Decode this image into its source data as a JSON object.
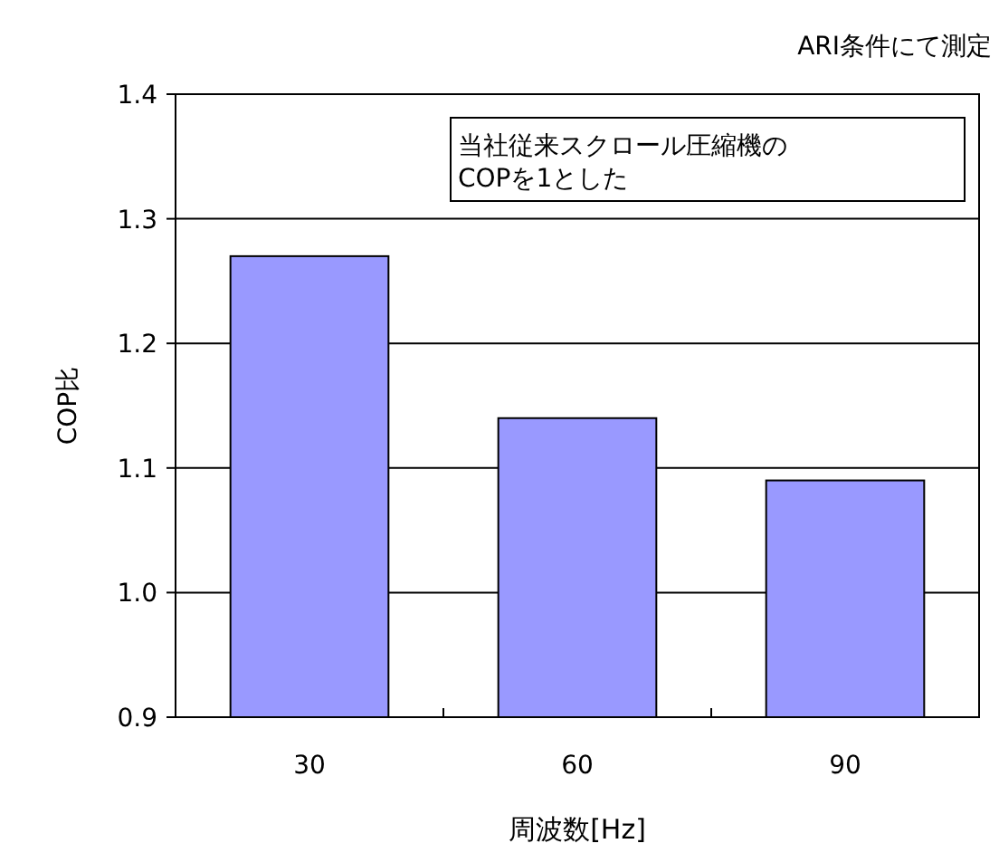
{
  "chart_data": {
    "type": "bar",
    "title": "ARI条件にて測定",
    "annotations": [
      "当社従来スクロール圧縮機の\nCOPを1とした"
    ],
    "xlabel": "周波数[Hz]",
    "ylabel": "COP比",
    "categories": [
      "30",
      "60",
      "90"
    ],
    "values": [
      1.27,
      1.14,
      1.09
    ],
    "color": "#9999ff",
    "ylim": [
      0.9,
      1.4
    ],
    "yticks": [
      {
        "value": 0.9,
        "label": "0.9"
      },
      {
        "value": 1.0,
        "label": "1.0"
      },
      {
        "value": 1.1,
        "label": "1.1"
      },
      {
        "value": 1.2,
        "label": "1.2"
      },
      {
        "value": 1.3,
        "label": "1.3"
      },
      {
        "value": 1.4,
        "label": "1.4"
      }
    ],
    "grid": "y"
  }
}
